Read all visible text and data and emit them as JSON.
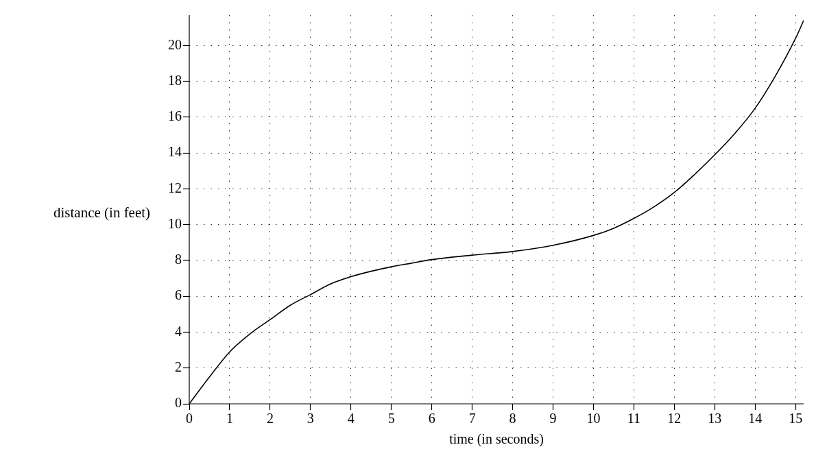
{
  "chart_data": {
    "type": "line",
    "xlabel": "time (in seconds)",
    "ylabel": "distance (in feet)",
    "x": [
      0,
      0.5,
      1,
      1.5,
      2,
      2.5,
      3,
      3.5,
      4,
      4.5,
      5,
      5.5,
      6,
      7,
      8,
      9,
      10,
      10.5,
      11,
      11.5,
      12,
      12.5,
      13,
      13.5,
      14,
      14.5,
      15,
      15.2
    ],
    "series": [
      {
        "color": "#000000",
        "values": [
          0,
          1.5,
          2.9,
          3.9,
          4.7,
          5.5,
          6.1,
          6.7,
          7.1,
          7.4,
          7.65,
          7.85,
          8.05,
          8.3,
          8.5,
          8.85,
          9.4,
          9.8,
          10.35,
          11,
          11.8,
          12.8,
          13.9,
          15.1,
          16.5,
          18.3,
          20.4,
          21.4
        ]
      }
    ],
    "xlim": [
      0,
      15.2
    ],
    "ylim": [
      0,
      21.7
    ],
    "xticks": [
      0,
      1,
      2,
      3,
      4,
      5,
      6,
      7,
      8,
      9,
      10,
      11,
      12,
      13,
      14,
      15
    ],
    "yticks": [
      0,
      2,
      4,
      6,
      8,
      10,
      12,
      14,
      16,
      18,
      20
    ],
    "grid": true,
    "marker": "none",
    "line_style": "solid",
    "legend": false
  }
}
